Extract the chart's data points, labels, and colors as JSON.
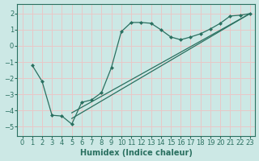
{
  "xlabel": "Humidex (Indice chaleur)",
  "bg_color": "#cce8e5",
  "grid_color": "#e8c8c8",
  "line_color": "#2a7060",
  "xlim": [
    -0.5,
    23.5
  ],
  "ylim": [
    -5.6,
    2.6
  ],
  "xticks": [
    0,
    1,
    2,
    3,
    4,
    5,
    6,
    7,
    8,
    9,
    10,
    11,
    12,
    13,
    14,
    15,
    16,
    17,
    18,
    19,
    20,
    21,
    22,
    23
  ],
  "yticks": [
    -5,
    -4,
    -3,
    -2,
    -1,
    0,
    1,
    2
  ],
  "curve1_x": [
    1,
    2,
    3,
    4,
    5,
    6,
    7,
    8,
    9,
    10,
    11,
    12,
    13,
    14,
    15,
    16,
    17,
    18,
    19,
    20,
    21,
    22,
    23
  ],
  "curve1_y": [
    -1.2,
    -2.2,
    -4.3,
    -4.35,
    -4.85,
    -3.5,
    -3.35,
    -2.9,
    -1.35,
    0.88,
    1.45,
    1.45,
    1.4,
    1.0,
    0.55,
    0.38,
    0.55,
    0.75,
    1.05,
    1.4,
    1.85,
    1.9,
    2.0
  ],
  "line1_x": [
    5,
    23
  ],
  "line1_y": [
    -4.5,
    2.0
  ],
  "line2_x": [
    5,
    23
  ],
  "line2_y": [
    -4.15,
    2.0
  ]
}
